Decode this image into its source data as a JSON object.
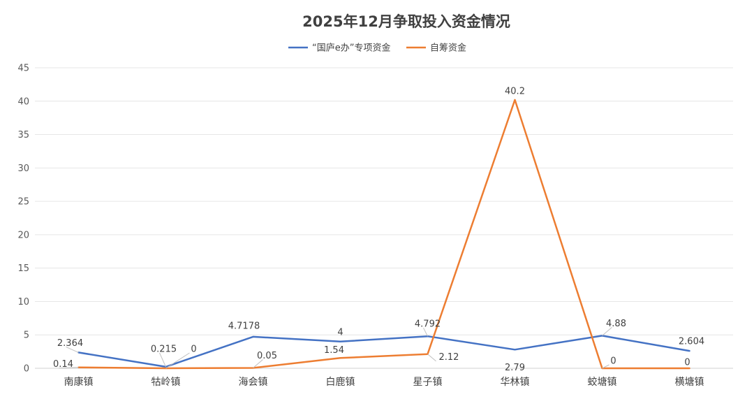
{
  "chart_data": {
    "type": "line",
    "title": "2025年12月争取投入资金情况",
    "categories": [
      "南康镇",
      "牯岭镇",
      "海会镇",
      "白鹿镇",
      "星子镇",
      "华林镇",
      "蛟塘镇",
      "横塘镇"
    ],
    "series": [
      {
        "name": "“国庐e办”专项资金",
        "color": "#4472C4",
        "values": [
          2.364,
          0.215,
          4.7178,
          4,
          4.792,
          2.79,
          4.88,
          2.604
        ],
        "labels": [
          "2.364",
          "0.215",
          "4.7178",
          "4",
          "4.792",
          "2.79",
          "4.88",
          "2.604"
        ]
      },
      {
        "name": "自筹资金",
        "color": "#ED7D31",
        "values": [
          0.14,
          0,
          0.05,
          1.54,
          2.12,
          40.2,
          0,
          0
        ],
        "labels": [
          "0.14",
          "0",
          "0.05",
          "1.54",
          "2.12",
          "40.2",
          "0",
          "0"
        ]
      }
    ],
    "ylim": [
      0,
      45
    ],
    "yticks": [
      0,
      5,
      10,
      15,
      20,
      25,
      30,
      35,
      40,
      45
    ],
    "grid": true,
    "legend_position": "top"
  }
}
